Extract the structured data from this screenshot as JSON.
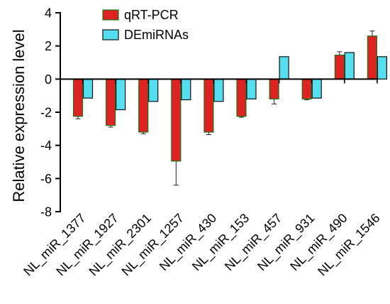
{
  "chart_data": {
    "type": "bar",
    "ylabel": "Relative expression level",
    "xlabel": "",
    "ylim": [
      -8,
      4
    ],
    "yticks": [
      -8,
      -6,
      -4,
      -2,
      0,
      2,
      4
    ],
    "grid": false,
    "legend_position": "top",
    "categories": [
      "NL_miR_1377",
      "NL_miR_1927",
      "NL_miR_2301",
      "NL_miR_1257",
      "NL_miR_430",
      "NL_miR_153",
      "NL_miR_457",
      "NL_miR_931",
      "NL_miR_490",
      "NL_miR_1546"
    ],
    "series": [
      {
        "name": "qRT-PCR",
        "color": "#dd2222",
        "edge_color": "#1a7a1a",
        "values": [
          -2.25,
          -2.8,
          -3.2,
          -4.95,
          -3.2,
          -2.25,
          -1.2,
          -1.2,
          1.45,
          2.6
        ],
        "errors": [
          0.15,
          0.1,
          0.1,
          1.45,
          0.15,
          0.05,
          0.3,
          0.05,
          0.2,
          0.3
        ]
      },
      {
        "name": "DEmiRNAs",
        "color": "#55ddf0",
        "edge_color": "#111111",
        "values": [
          -1.15,
          -1.85,
          -1.35,
          -1.25,
          -1.35,
          -1.2,
          1.35,
          -1.15,
          1.6,
          1.35
        ]
      }
    ]
  }
}
